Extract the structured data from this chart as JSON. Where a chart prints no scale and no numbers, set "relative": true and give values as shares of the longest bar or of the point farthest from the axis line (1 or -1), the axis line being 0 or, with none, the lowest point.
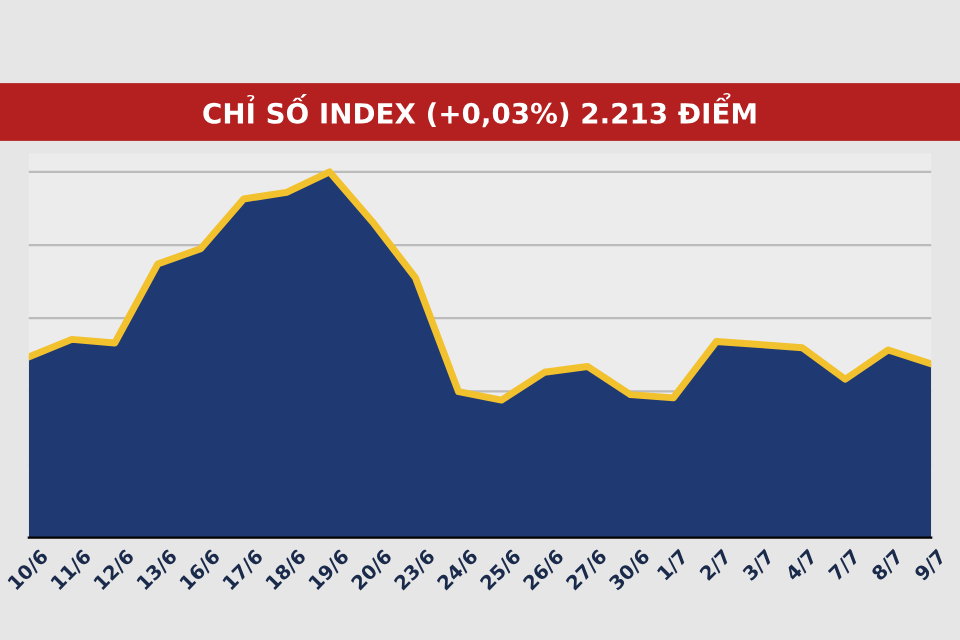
{
  "chart_data": {
    "type": "area",
    "title": "CHỈ SỐ INDEX (+0,03%) 2.213 ĐIỂM",
    "relative": true,
    "grid": "y",
    "tick_labels": "x",
    "categories": [
      "10/6",
      "11/6",
      "12/6",
      "13/6",
      "16/6",
      "17/6",
      "18/6",
      "19/6",
      "20/6",
      "23/6",
      "24/6",
      "25/6",
      "26/6",
      "27/6",
      "30/6",
      "1/7",
      "2/7",
      "3/7",
      "4/7",
      "7/7",
      "8/7",
      "9/7"
    ],
    "series": [
      {
        "color": "#1f3a73",
        "values": [
          0.494,
          0.542,
          0.532,
          0.748,
          0.79,
          0.926,
          0.944,
          1,
          0.863,
          0.71,
          0.399,
          0.376,
          0.452,
          0.468,
          0.391,
          0.382,
          0.536,
          0.528,
          0.519,
          0.433,
          0.513,
          0.475
        ]
      },
      {
        "type": "line",
        "color": "#f2c12e",
        "values": [
          0.494,
          0.542,
          0.532,
          0.748,
          0.79,
          0.926,
          0.944,
          1,
          0.863,
          0.71,
          0.399,
          0.376,
          0.452,
          0.468,
          0.391,
          0.382,
          0.536,
          0.528,
          0.519,
          0.433,
          0.513,
          0.475
        ]
      }
    ]
  }
}
